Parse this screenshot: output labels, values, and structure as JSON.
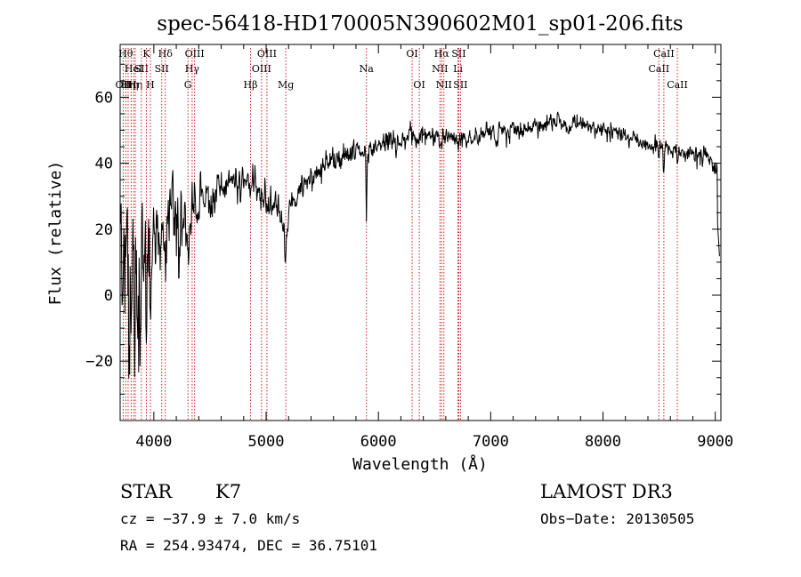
{
  "chart_data": {
    "type": "line",
    "title": "spec-56418-HD170005N390602M01_sp01-206.fits",
    "xlabel": "Wavelength (Å)",
    "ylabel": "Flux (relative)",
    "xlim": [
      3700,
      9050
    ],
    "ylim": [
      -38,
      76
    ],
    "x_ticks": [
      4000,
      5000,
      6000,
      7000,
      8000,
      9000
    ],
    "y_ticks": [
      -20,
      0,
      20,
      40,
      60
    ],
    "line_color": "#000000",
    "marker_color": "#cc2222",
    "continuum": [
      [
        3700,
        10
      ],
      [
        3750,
        16
      ],
      [
        3800,
        10
      ],
      [
        3850,
        8
      ],
      [
        3900,
        12
      ],
      [
        3950,
        10
      ],
      [
        4000,
        15
      ],
      [
        4050,
        17
      ],
      [
        4100,
        19
      ],
      [
        4150,
        23
      ],
      [
        4200,
        26
      ],
      [
        4250,
        24
      ],
      [
        4300,
        22
      ],
      [
        4350,
        28
      ],
      [
        4400,
        29
      ],
      [
        4450,
        27
      ],
      [
        4500,
        29
      ],
      [
        4550,
        31
      ],
      [
        4600,
        31
      ],
      [
        4650,
        34
      ],
      [
        4700,
        35
      ],
      [
        4750,
        34
      ],
      [
        4800,
        34
      ],
      [
        4850,
        33
      ],
      [
        4900,
        33
      ],
      [
        4950,
        31
      ],
      [
        5000,
        29
      ],
      [
        5050,
        27
      ],
      [
        5100,
        26
      ],
      [
        5150,
        25
      ],
      [
        5200,
        27
      ],
      [
        5300,
        32
      ],
      [
        5400,
        35
      ],
      [
        5500,
        38
      ],
      [
        5600,
        40
      ],
      [
        5700,
        42
      ],
      [
        5800,
        44
      ],
      [
        5900,
        44
      ],
      [
        6000,
        45
      ],
      [
        6100,
        46
      ],
      [
        6200,
        47
      ],
      [
        6300,
        48
      ],
      [
        6400,
        48
      ],
      [
        6500,
        48
      ],
      [
        6600,
        48
      ],
      [
        6700,
        48
      ],
      [
        6800,
        47
      ],
      [
        6900,
        48
      ],
      [
        7000,
        49
      ],
      [
        7100,
        50
      ],
      [
        7200,
        50
      ],
      [
        7300,
        50
      ],
      [
        7400,
        51
      ],
      [
        7500,
        52
      ],
      [
        7600,
        53
      ],
      [
        7650,
        52
      ],
      [
        7700,
        52
      ],
      [
        7800,
        52
      ],
      [
        7900,
        51
      ],
      [
        8000,
        50
      ],
      [
        8100,
        49
      ],
      [
        8200,
        48
      ],
      [
        8300,
        47
      ],
      [
        8400,
        46
      ],
      [
        8500,
        45
      ],
      [
        8600,
        44
      ],
      [
        8700,
        43
      ],
      [
        8800,
        43
      ],
      [
        8900,
        42
      ],
      [
        8950,
        41
      ],
      [
        9000,
        38
      ]
    ],
    "noise_profile": [
      [
        3700,
        15
      ],
      [
        3800,
        15
      ],
      [
        3900,
        13
      ],
      [
        4000,
        11
      ],
      [
        4100,
        10
      ],
      [
        4200,
        9
      ],
      [
        4300,
        7
      ],
      [
        4400,
        5
      ],
      [
        4600,
        4
      ],
      [
        5000,
        3.5
      ],
      [
        5500,
        2.8
      ],
      [
        6000,
        2.5
      ],
      [
        7000,
        2
      ],
      [
        8000,
        1.8
      ],
      [
        9000,
        2
      ]
    ],
    "absorption_features": [
      [
        3720,
        -18,
        6
      ],
      [
        3780,
        -22,
        5
      ],
      [
        3830,
        -20,
        5
      ],
      [
        3880,
        -18,
        5
      ],
      [
        3934,
        -25,
        6
      ],
      [
        3969,
        -18,
        5
      ],
      [
        4102,
        -10,
        5
      ],
      [
        4227,
        -12,
        6
      ],
      [
        4300,
        -12,
        8
      ],
      [
        5175,
        -12,
        14
      ],
      [
        5270,
        -4,
        12
      ],
      [
        5893,
        -22,
        4
      ],
      [
        6160,
        -4,
        10
      ],
      [
        6563,
        -3,
        4
      ],
      [
        7050,
        -4,
        10
      ],
      [
        7700,
        -2,
        6
      ],
      [
        8498,
        -5,
        4
      ],
      [
        8542,
        -8,
        4
      ],
      [
        8662,
        -6,
        4
      ]
    ],
    "line_markers": [
      {
        "x": 3727,
        "label": "OII",
        "row": 2
      },
      {
        "x": 3750,
        "label": "Hθ",
        "row": 0
      },
      {
        "x": 3771,
        "label": "Hη",
        "row": 2
      },
      {
        "x": 3798,
        "label": "Hη",
        "row": 2
      },
      {
        "x": 3820,
        "label": "HeI",
        "row": 1
      },
      {
        "x": 3835,
        "label": "Hη",
        "row": 2
      },
      {
        "x": 3889,
        "label": "SII",
        "row": 1
      },
      {
        "x": 3934,
        "label": "K",
        "row": 0
      },
      {
        "x": 3969,
        "label": "H",
        "row": 2
      },
      {
        "x": 4070,
        "label": "SII",
        "row": 1
      },
      {
        "x": 4102,
        "label": "Hδ",
        "row": 0
      },
      {
        "x": 4304,
        "label": "G",
        "row": 2
      },
      {
        "x": 4341,
        "label": "Hγ",
        "row": 1
      },
      {
        "x": 4363,
        "label": "OIII",
        "row": 0
      },
      {
        "x": 4861,
        "label": "Hβ",
        "row": 2
      },
      {
        "x": 4959,
        "label": "OIII",
        "row": 1
      },
      {
        "x": 5007,
        "label": "OIII",
        "row": 0
      },
      {
        "x": 5175,
        "label": "Mg",
        "row": 2
      },
      {
        "x": 5893,
        "label": "Na",
        "row": 1
      },
      {
        "x": 6300,
        "label": "OI",
        "row": 0
      },
      {
        "x": 6364,
        "label": "OI",
        "row": 2
      },
      {
        "x": 6548,
        "label": "NII",
        "row": 1
      },
      {
        "x": 6563,
        "label": "Hα",
        "row": 0
      },
      {
        "x": 6583,
        "label": "NII",
        "row": 2
      },
      {
        "x": 6708,
        "label": "Li",
        "row": 1
      },
      {
        "x": 6716,
        "label": "SII",
        "row": 0
      },
      {
        "x": 6731,
        "label": "SII",
        "row": 2
      },
      {
        "x": 8498,
        "label": "CaII",
        "row": 1
      },
      {
        "x": 8542,
        "label": "CaII",
        "row": 0
      },
      {
        "x": 8662,
        "label": "CaII",
        "row": 2
      }
    ]
  },
  "info": {
    "object_class": "STAR",
    "subclass": "K7",
    "survey": "LAMOST DR3",
    "redshift_text": "cz = −37.9 ± 7.0 km/s",
    "obs_date_text": "Obs−Date: 20130505",
    "coords_text": "RA = 254.93474, DEC =  36.75101"
  }
}
